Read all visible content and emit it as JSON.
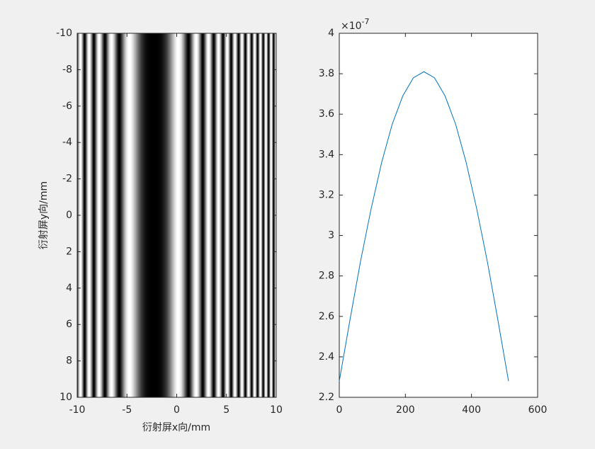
{
  "chart_data": [
    {
      "type": "image",
      "xlabel": "衍射屏x向/mm",
      "ylabel": "衍射屏y向/mm",
      "xlim": [
        -10,
        10
      ],
      "xticks": [
        -10,
        -5,
        0,
        5,
        10
      ],
      "ylim": [
        -10,
        10
      ],
      "yticks": [
        -10,
        -8,
        -6,
        -4,
        -2,
        0,
        2,
        4,
        6,
        8,
        10
      ],
      "y_direction": "reverse",
      "colormap": "gray"
    },
    {
      "type": "line",
      "x": [
        0,
        32,
        64,
        96,
        128,
        160,
        192,
        224,
        256,
        288,
        320,
        352,
        384,
        416,
        448,
        480,
        512
      ],
      "series": [
        {
          "color": "#0072bd",
          "values": [
            2.28,
            2.58,
            2.87,
            3.13,
            3.36,
            3.55,
            3.69,
            3.78,
            3.81,
            3.78,
            3.69,
            3.55,
            3.36,
            3.13,
            2.87,
            2.58,
            2.28
          ]
        }
      ],
      "xlim": [
        0,
        600
      ],
      "xticks": [
        0,
        200,
        400,
        600
      ],
      "ylim": [
        2.2,
        4
      ],
      "yticks": [
        2.2,
        2.4,
        2.6,
        2.8,
        3,
        3.2,
        3.4,
        3.6,
        3.8,
        4
      ],
      "y_multiplier": {
        "base": "×10",
        "exponent": "-7"
      }
    }
  ]
}
